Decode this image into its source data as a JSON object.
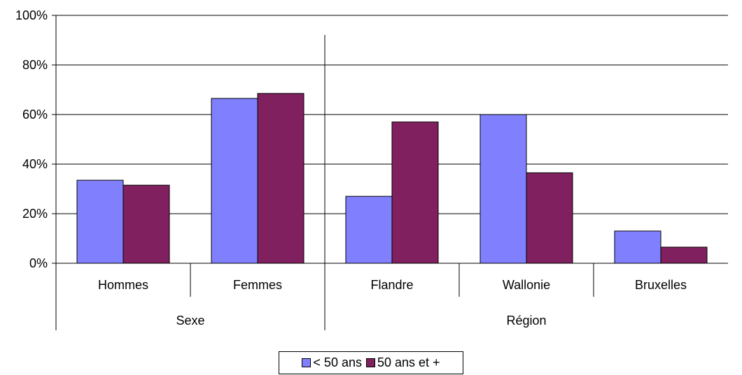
{
  "chart_data": {
    "type": "bar",
    "title": "",
    "xlabel": "",
    "ylabel": "",
    "ylim": [
      0,
      100
    ],
    "y_ticks": [
      "0%",
      "20%",
      "40%",
      "60%",
      "80%",
      "100%"
    ],
    "gridlines": true,
    "groups": [
      {
        "label": "Sexe",
        "categories": [
          "Hommes",
          "Femmes"
        ]
      },
      {
        "label": "Région",
        "categories": [
          "Flandre",
          "Wallonie",
          "Bruxelles"
        ]
      }
    ],
    "categories": [
      "Hommes",
      "Femmes",
      "Flandre",
      "Wallonie",
      "Bruxelles"
    ],
    "series": [
      {
        "name": "< 50 ans",
        "color": "#8080FF",
        "values": [
          33.5,
          66.5,
          27,
          60,
          13
        ]
      },
      {
        "name": "50 ans et +",
        "color": "#80205F",
        "values": [
          31.5,
          68.5,
          57,
          36.5,
          6.5
        ]
      }
    ],
    "legend_position": "bottom"
  }
}
